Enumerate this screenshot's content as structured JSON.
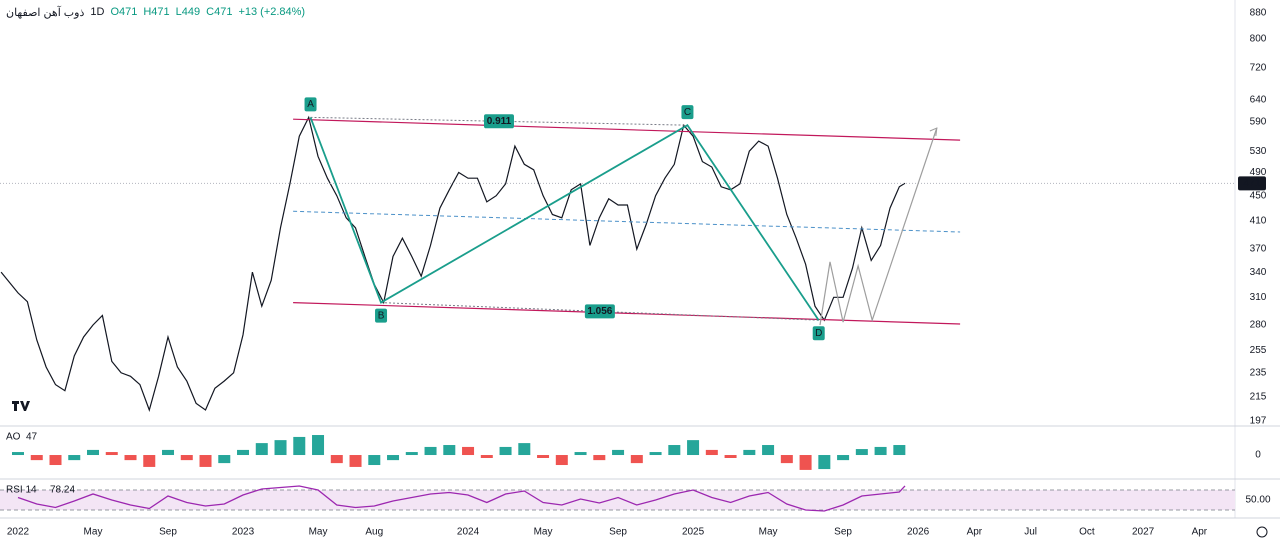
{
  "header": {
    "symbol": "ذوب آهن اصفهان",
    "interval": "1D",
    "ohlc": [
      "O471",
      "H471",
      "L449",
      "C471"
    ],
    "change": "+13 (+2.84%)"
  },
  "chart_data": [
    {
      "type": "line",
      "log_scale": true,
      "color": "#131722",
      "x": [
        -0.9,
        0,
        0.5,
        1,
        1.5,
        2,
        2.5,
        3,
        3.5,
        4,
        4.5,
        5,
        5.5,
        6,
        6.5,
        7,
        7.5,
        8,
        8.5,
        9,
        9.5,
        10,
        10.5,
        11,
        11.5,
        12,
        12.5,
        13,
        13.5,
        14,
        14.5,
        15,
        15.5,
        16,
        16.5,
        17,
        17.5,
        18,
        18.5,
        19,
        19.5,
        20,
        20.5,
        21,
        21.5,
        22,
        22.5,
        23,
        23.5,
        24,
        24.5,
        25,
        25.5,
        26,
        26.5,
        27,
        27.5,
        28,
        28.5,
        29,
        29.5,
        30,
        30.5,
        31,
        31.5,
        32,
        32.5,
        33,
        33.5,
        34,
        34.5,
        35,
        35.5,
        36,
        36.5,
        37,
        37.5,
        38,
        38.5,
        39,
        39.5,
        40,
        40.5,
        41,
        41.5,
        42,
        42.5,
        43,
        43.5,
        44,
        44.5,
        45,
        45.5,
        46,
        46.5,
        47,
        47.3
      ],
      "values": [
        340,
        315,
        305,
        265,
        240,
        225,
        220,
        250,
        268,
        280,
        290,
        245,
        235,
        232,
        225,
        205,
        232,
        268,
        240,
        228,
        210,
        205,
        222,
        228,
        235,
        270,
        340,
        300,
        330,
        400,
        470,
        560,
        600,
        520,
        480,
        450,
        415,
        400,
        360,
        325,
        304,
        360,
        385,
        360,
        335,
        375,
        430,
        460,
        490,
        480,
        480,
        440,
        450,
        470,
        540,
        505,
        495,
        450,
        420,
        415,
        460,
        470,
        375,
        415,
        445,
        435,
        435,
        370,
        405,
        450,
        480,
        505,
        583,
        560,
        510,
        500,
        465,
        460,
        470,
        530,
        550,
        540,
        480,
        420,
        385,
        350,
        300,
        285,
        310,
        310,
        345,
        400,
        355,
        375,
        430,
        465,
        471
      ],
      "last_value": 471,
      "xlim": [
        -0.96,
        64.9
      ],
      "xticks": [
        {
          "value": 0,
          "label": "2022"
        },
        {
          "value": 4,
          "label": "May"
        },
        {
          "value": 8,
          "label": "Sep"
        },
        {
          "value": 12,
          "label": "2023"
        },
        {
          "value": 16,
          "label": "May"
        },
        {
          "value": 19,
          "label": "Aug"
        },
        {
          "value": 24,
          "label": "2024"
        },
        {
          "value": 28,
          "label": "May"
        },
        {
          "value": 32,
          "label": "Sep"
        },
        {
          "value": 36,
          "label": "2025"
        },
        {
          "value": 40,
          "label": "May"
        },
        {
          "value": 44,
          "label": "Sep"
        },
        {
          "value": 48,
          "label": "2026"
        },
        {
          "value": 51,
          "label": "Apr"
        },
        {
          "value": 54,
          "label": "Jul"
        },
        {
          "value": 57,
          "label": "Oct"
        },
        {
          "value": 60,
          "label": "2027"
        },
        {
          "value": 63,
          "label": "Apr"
        }
      ],
      "ylim": [
        194,
        923
      ],
      "yticks": [
        880,
        800,
        720,
        640,
        590,
        530,
        490,
        450,
        410,
        370,
        340,
        310,
        280,
        255,
        235,
        215,
        197
      ],
      "pattern": {
        "color": "#1a9e8c",
        "labels": [
          "A",
          "B",
          "C",
          "D"
        ],
        "x": [
          15.6,
          19.36,
          35.7,
          42.7
        ],
        "y": [
          600,
          304,
          583,
          285
        ],
        "ratios": [
          0.911,
          1.056
        ]
      },
      "channel": {
        "color": "#c2185b",
        "x": [
          14.67,
          50.24
        ],
        "upper": [
          596,
          552
        ],
        "lower": [
          304,
          281
        ],
        "middle": [
          425,
          394
        ],
        "middle_color": "#4a90c8"
      },
      "projection": {
        "color": "#9e9e9e",
        "x": [
          42.77,
          43.3,
          44,
          44.8,
          45.55,
          49.0
        ],
        "values": [
          280,
          353,
          283,
          348,
          285,
          577
        ]
      }
    },
    {
      "type": "bar",
      "title": "AO",
      "up_color": "#26a69a",
      "down_color": "#ef5350",
      "x": [
        0,
        1,
        2,
        3,
        4,
        5,
        6,
        7,
        8,
        9,
        10,
        11,
        12,
        13,
        14,
        15,
        16,
        17,
        18,
        19,
        20,
        21,
        22,
        23,
        24,
        25,
        26,
        27,
        28,
        29,
        30,
        31,
        32,
        33,
        34,
        35,
        36,
        37,
        38,
        39,
        40,
        41,
        42,
        43,
        44,
        45,
        46,
        47
      ],
      "values": [
        14,
        -24,
        -47,
        -24,
        24,
        14,
        -24,
        -56,
        24,
        -24,
        -56,
        -38,
        24,
        56,
        70,
        85,
        94,
        -38,
        -56,
        -47,
        -24,
        14,
        38,
        47,
        38,
        -14,
        38,
        56,
        -14,
        -47,
        14,
        -24,
        24,
        -38,
        14,
        47,
        70,
        24,
        -14,
        24,
        47,
        -38,
        -70,
        -66,
        -24,
        28,
        38,
        47
      ],
      "ylim": [
        -108,
        127
      ],
      "yticks": [
        0
      ]
    },
    {
      "type": "line",
      "title": "RSI 14",
      "color": "#9c27b0",
      "band": [
        30,
        70
      ],
      "band_color": "#f3e5f5",
      "x": [
        0,
        1,
        2,
        3,
        4,
        5,
        6,
        7,
        8,
        9,
        10,
        11,
        12,
        13,
        14,
        15,
        16,
        17,
        18,
        19,
        20,
        21,
        22,
        23,
        24,
        25,
        26,
        27,
        28,
        29,
        30,
        31,
        32,
        33,
        34,
        35,
        36,
        37,
        38,
        39,
        40,
        41,
        42,
        43,
        44,
        45,
        46,
        47,
        47.3
      ],
      "values": [
        55,
        42,
        35,
        48,
        62,
        50,
        40,
        33,
        58,
        45,
        38,
        42,
        60,
        72,
        75,
        78,
        70,
        40,
        35,
        38,
        48,
        55,
        62,
        65,
        60,
        45,
        62,
        68,
        45,
        40,
        52,
        44,
        55,
        40,
        50,
        62,
        70,
        55,
        45,
        58,
        65,
        42,
        30,
        28,
        40,
        58,
        62,
        66,
        78.24
      ],
      "ylim": [
        18,
        88
      ],
      "yticks": [
        {
          "value": 50,
          "label": "50.00"
        }
      ]
    }
  ]
}
